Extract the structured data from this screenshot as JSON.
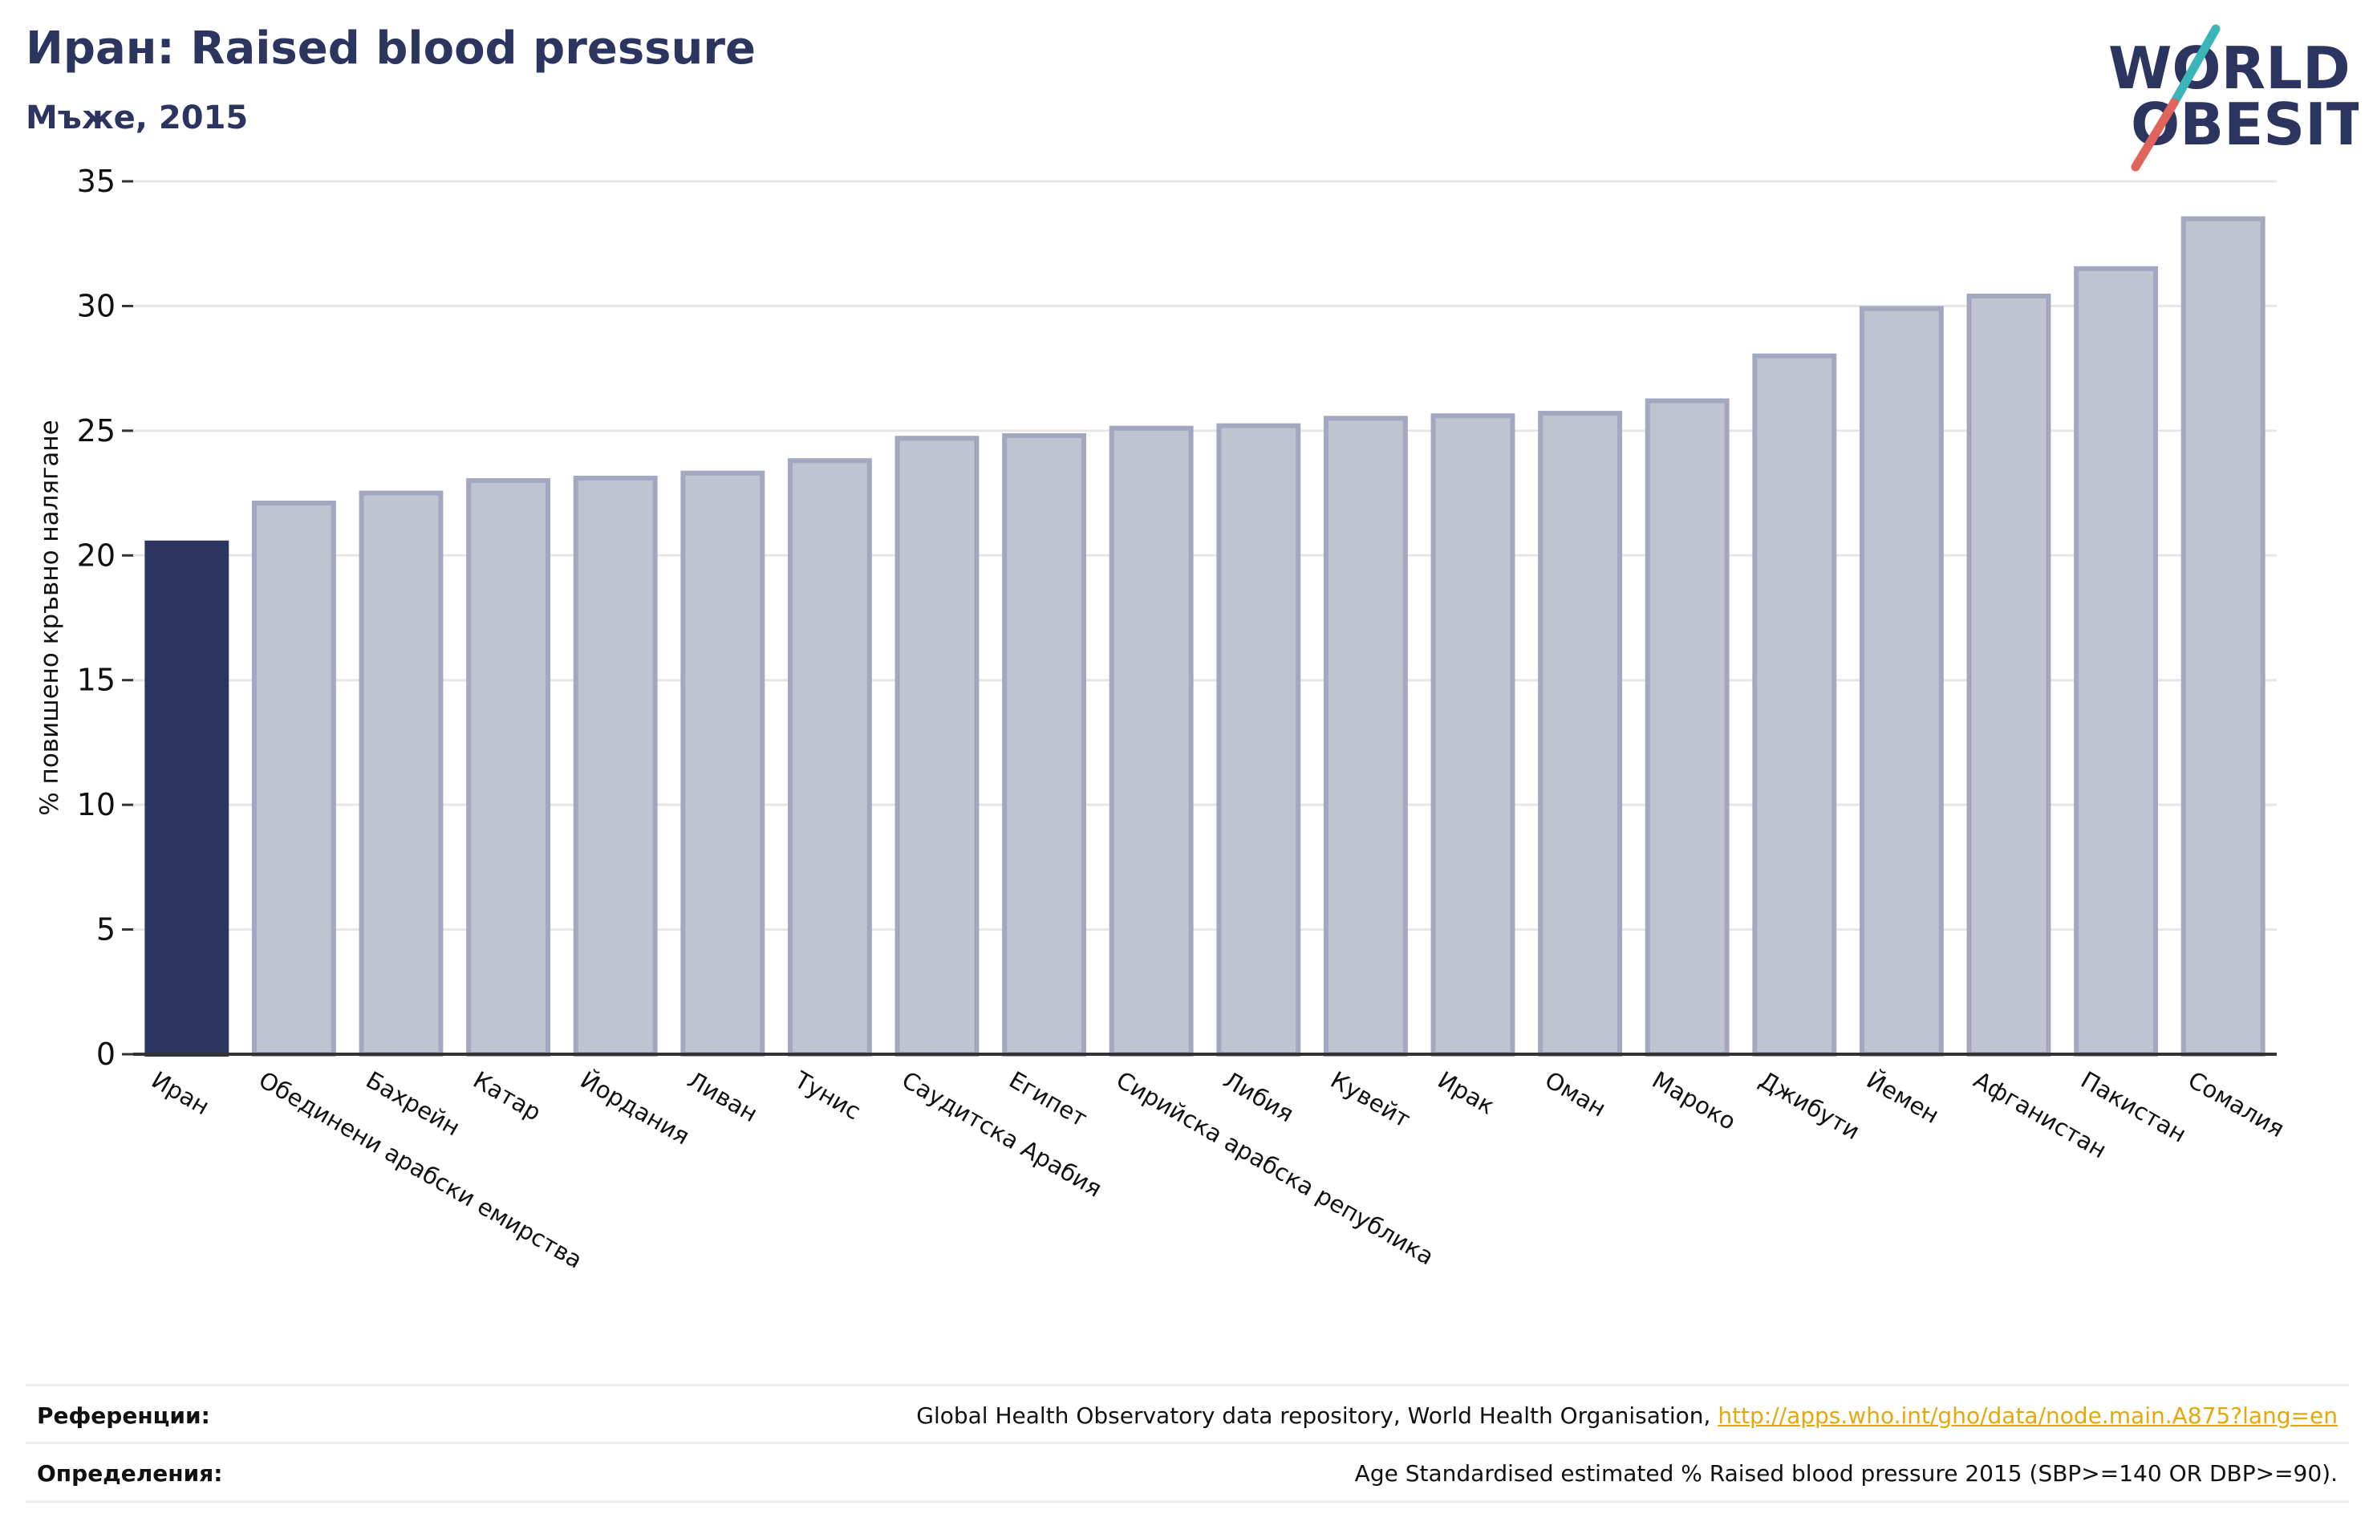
{
  "header": {
    "title": "Иран: Raised blood pressure",
    "subtitle": "Мъже, 2015"
  },
  "logo": {
    "line1": "WORLD",
    "line2": "OBESITY",
    "accent_colors": [
      "#3bb5b8",
      "#e0645a"
    ]
  },
  "footer": {
    "refs_label": "Референции:",
    "refs_text": "Global Health Observatory data repository, World Health Organisation, ",
    "refs_link": "http://apps.who.int/gho/data/node.main.A875?lang=en",
    "defs_label": "Определения:",
    "defs_text": "Age Standardised estimated % Raised blood pressure 2015 (SBP>=140 OR DBP>=90)."
  },
  "chart_data": {
    "type": "bar",
    "title": "Иран: Raised blood pressure",
    "subtitle": "Мъже, 2015",
    "xlabel": "",
    "ylabel": "% повишено кръвно налягане",
    "ylim": [
      0,
      35
    ],
    "yticks": [
      0,
      5,
      10,
      15,
      20,
      25,
      30,
      35
    ],
    "grid": true,
    "highlight_category": "Иран",
    "colors": {
      "highlight": "#2b3560",
      "bar_fill": "#c0c3d0",
      "bar_edge": "#a3a8c0",
      "axis": "#333333",
      "grid": "#e6e6e6",
      "text": "#111111"
    },
    "categories": [
      "Иран",
      "Обединени арабски емирства",
      "Бахрейн",
      "Катар",
      "Йордания",
      "Ливан",
      "Тунис",
      "Саудитска Арабия",
      "Египет",
      "Сирийска арабска република",
      "Либия",
      "Кувейт",
      "Ирак",
      "Оман",
      "Мароко",
      "Джибути",
      "Йемен",
      "Афганистан",
      "Пакистан",
      "Сомалия"
    ],
    "values": [
      20.5,
      22.1,
      22.5,
      23.0,
      23.1,
      23.3,
      23.8,
      24.7,
      24.8,
      25.1,
      25.2,
      25.5,
      25.6,
      25.7,
      26.2,
      28.0,
      29.9,
      30.4,
      31.5,
      33.5
    ]
  }
}
